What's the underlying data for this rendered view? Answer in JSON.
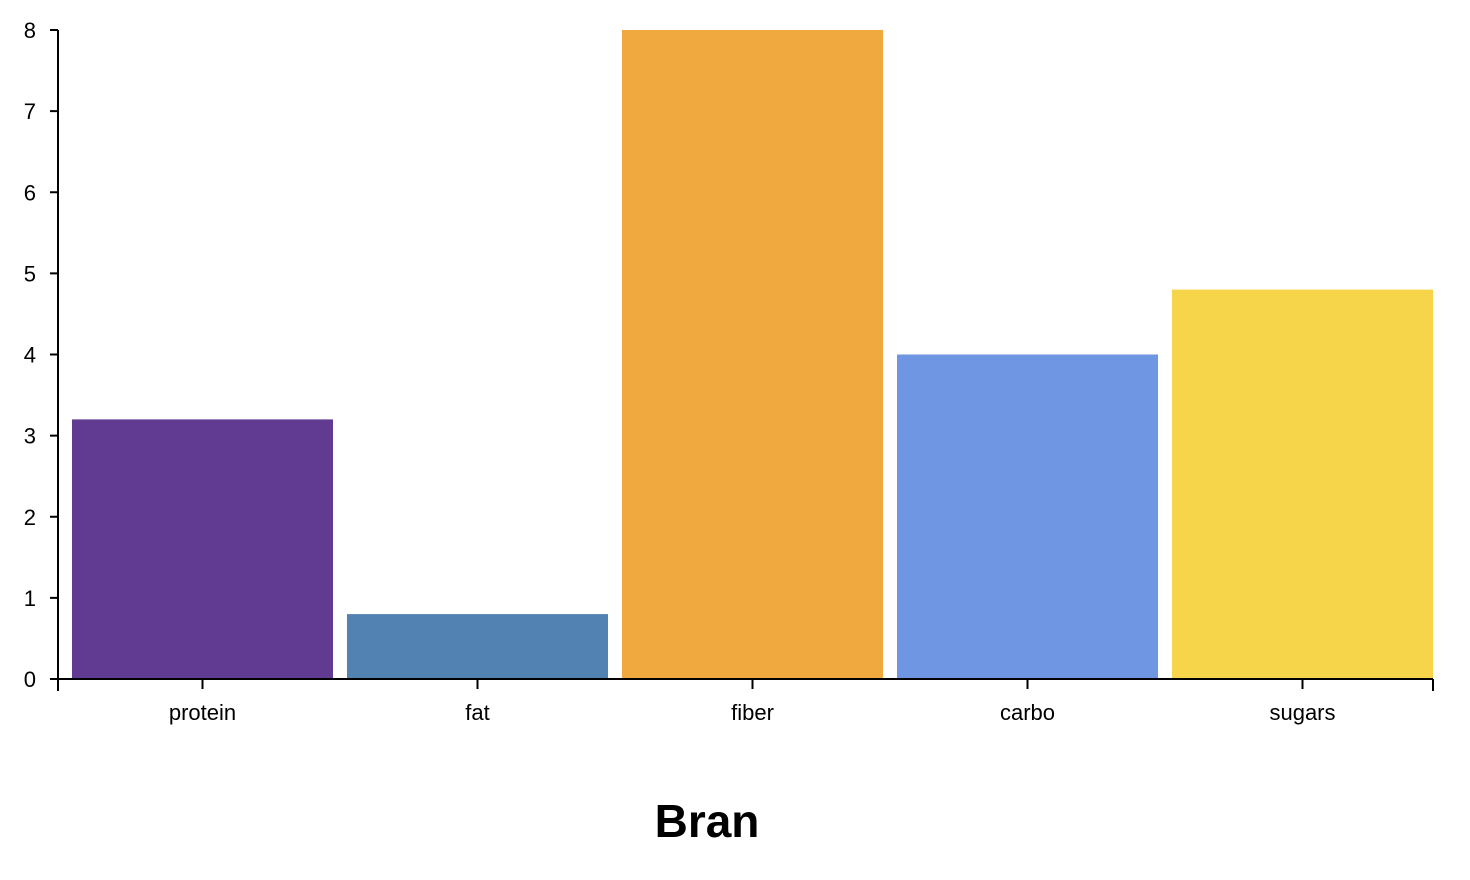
{
  "chart_data": {
    "type": "bar",
    "title": "Bran",
    "xlabel": "",
    "ylabel": "",
    "categories": [
      "protein",
      "fat",
      "fiber",
      "carbo",
      "sugars"
    ],
    "values": [
      3.2,
      0.8,
      8,
      4,
      4.8
    ],
    "colors": [
      "#613a91",
      "#5282b2",
      "#f0a93e",
      "#6e96e3",
      "#f7d54a"
    ],
    "ylim": [
      0,
      8
    ],
    "yticks": [
      0,
      1,
      2,
      3,
      4,
      5,
      6,
      7,
      8
    ],
    "grid": false,
    "legend": "none"
  }
}
